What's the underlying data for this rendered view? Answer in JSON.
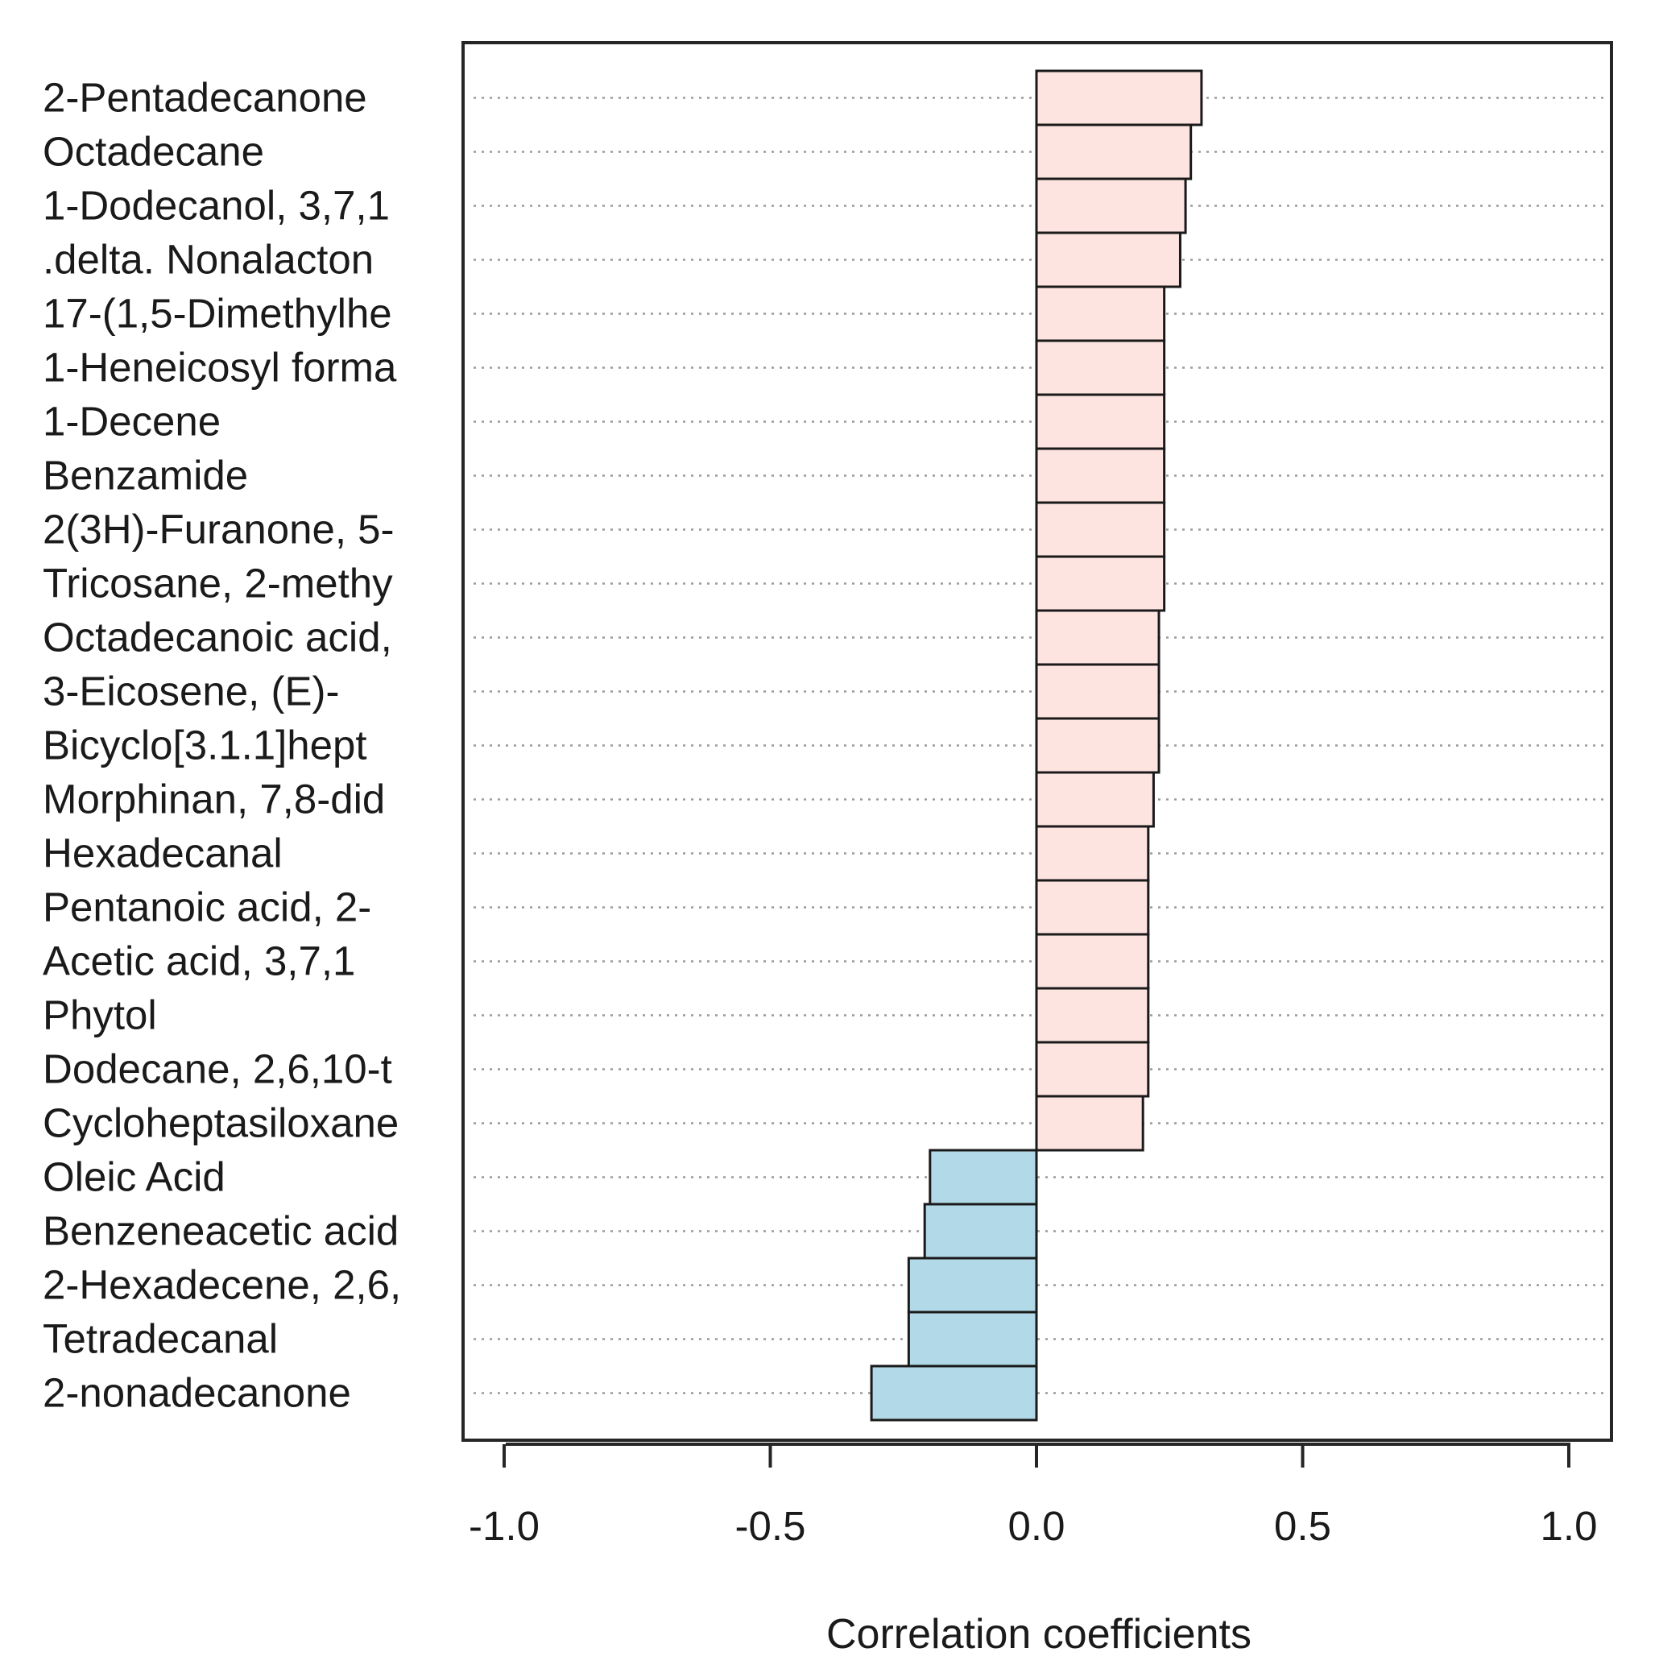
{
  "chart_data": {
    "type": "bar",
    "orientation": "horizontal",
    "title": "",
    "xlabel": "Correlation coefficients",
    "ylabel": "",
    "xlim": [
      -1.0,
      1.0
    ],
    "xticks": [
      "-1.0",
      "-0.5",
      "0.0",
      "0.5",
      "1.0"
    ],
    "xtick_values": [
      -1.0,
      -0.5,
      0.0,
      0.5,
      1.0
    ],
    "grid": "dotted horizontal lines",
    "categories": [
      "2-Pentadecanone",
      "Octadecane",
      "1-Dodecanol, 3,7,1",
      ".delta. Nonalacton",
      "17-(1,5-Dimethylhe",
      "1-Heneicosyl forma",
      "1-Decene",
      "Benzamide",
      "2(3H)-Furanone, 5-",
      "Tricosane, 2-methy",
      "Octadecanoic acid,",
      "3-Eicosene, (E)-",
      "Bicyclo[3.1.1]hept",
      "Morphinan, 7,8-did",
      "Hexadecanal",
      "Pentanoic acid, 2-",
      "Acetic acid, 3,7,1",
      "Phytol",
      "Dodecane, 2,6,10-t",
      "Cycloheptasiloxane",
      "Oleic Acid",
      "Benzeneacetic acid",
      "2-Hexadecene, 2,6,",
      "Tetradecanal",
      "2-nonadecanone"
    ],
    "values": [
      0.31,
      0.29,
      0.28,
      0.27,
      0.24,
      0.24,
      0.24,
      0.24,
      0.24,
      0.24,
      0.23,
      0.23,
      0.23,
      0.22,
      0.21,
      0.21,
      0.21,
      0.21,
      0.21,
      0.2,
      -0.2,
      -0.21,
      -0.24,
      -0.24,
      -0.31
    ],
    "colors": {
      "positive": "#fde4e1",
      "negative": "#b1d9e7",
      "bar_border": "#1a1a1a",
      "grid": "#9a9a9a",
      "frame": "#262626"
    }
  }
}
